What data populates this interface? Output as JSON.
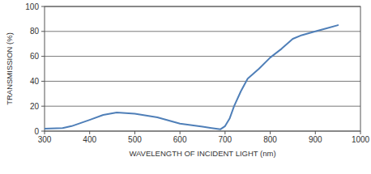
{
  "chart_data": {
    "type": "line",
    "x_label": "WAVELENGTH OF INCIDENT LIGHT (nm)",
    "y_label": "TRANSMISSION (%)",
    "x": [
      300,
      340,
      360,
      400,
      430,
      460,
      500,
      550,
      600,
      650,
      670,
      690,
      700,
      710,
      720,
      735,
      750,
      775,
      800,
      825,
      850,
      870,
      900,
      925,
      950
    ],
    "values": [
      2,
      2.5,
      4,
      9,
      13,
      15,
      14,
      11,
      6,
      3.5,
      2.5,
      1.5,
      4,
      10,
      20,
      32,
      42,
      50,
      59,
      66,
      74,
      77,
      80,
      82.5,
      85
    ],
    "color": "#4f7fb8",
    "xlim": [
      300,
      1000
    ],
    "ylim": [
      0,
      100
    ],
    "xticks": [
      300,
      400,
      500,
      600,
      700,
      800,
      900,
      1000
    ],
    "yticks": [
      0,
      20,
      40,
      60,
      80,
      100
    ],
    "grid": true
  }
}
